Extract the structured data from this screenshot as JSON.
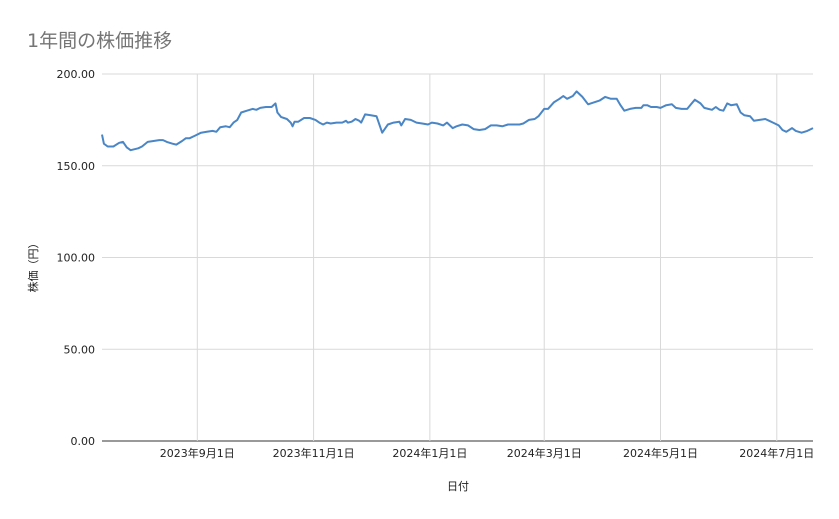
{
  "chart_data": {
    "type": "line",
    "title": "1年間の株価推移",
    "xlabel": "日付",
    "ylabel": "株価（円）",
    "ylim": [
      0,
      200
    ],
    "y_ticks": [
      "0.00",
      "50.00",
      "100.00",
      "150.00",
      "200.00"
    ],
    "x_ticks": [
      {
        "date": "2023-09-01",
        "label": "2023年9月1日"
      },
      {
        "date": "2023-11-01",
        "label": "2023年11月1日"
      },
      {
        "date": "2024-01-01",
        "label": "2024年1月1日"
      },
      {
        "date": "2024-03-01",
        "label": "2024年3月1日"
      },
      {
        "date": "2024-05-01",
        "label": "2024年5月1日"
      },
      {
        "date": "2024-07-01",
        "label": "2024年7月1日"
      }
    ],
    "xlim": [
      "2023-07-13",
      "2024-07-20"
    ],
    "grid": true,
    "legend": "none",
    "line_color": "#4a86c5",
    "series": [
      {
        "values": [
          [
            "2023-07-13",
            167
          ],
          [
            "2023-07-14",
            162
          ],
          [
            "2023-07-16",
            160.5
          ],
          [
            "2023-07-19",
            160.5
          ],
          [
            "2023-07-22",
            162.5
          ],
          [
            "2023-07-24",
            163
          ],
          [
            "2023-07-26",
            160
          ],
          [
            "2023-07-28",
            158.5
          ],
          [
            "2023-08-01",
            159.5
          ],
          [
            "2023-08-03",
            160.5
          ],
          [
            "2023-08-06",
            163
          ],
          [
            "2023-08-09",
            163.5
          ],
          [
            "2023-08-12",
            164
          ],
          [
            "2023-08-14",
            164
          ],
          [
            "2023-08-16",
            163
          ],
          [
            "2023-08-19",
            162
          ],
          [
            "2023-08-21",
            161.5
          ],
          [
            "2023-08-24",
            163.5
          ],
          [
            "2023-08-26",
            165
          ],
          [
            "2023-08-28",
            165
          ],
          [
            "2023-08-31",
            166.5
          ],
          [
            "2023-09-03",
            168
          ],
          [
            "2023-09-06",
            168.5
          ],
          [
            "2023-09-09",
            169
          ],
          [
            "2023-09-11",
            168.5
          ],
          [
            "2023-09-13",
            171
          ],
          [
            "2023-09-16",
            171.5
          ],
          [
            "2023-09-18",
            171
          ],
          [
            "2023-09-20",
            173.5
          ],
          [
            "2023-09-22",
            175
          ],
          [
            "2023-09-24",
            179
          ],
          [
            "2023-09-27",
            180
          ],
          [
            "2023-09-30",
            181
          ],
          [
            "2023-10-02",
            180.5
          ],
          [
            "2023-10-04",
            181.5
          ],
          [
            "2023-10-07",
            182
          ],
          [
            "2023-10-10",
            182
          ],
          [
            "2023-10-12",
            184
          ],
          [
            "2023-10-13",
            179
          ],
          [
            "2023-10-15",
            176.5
          ],
          [
            "2023-10-18",
            175.5
          ],
          [
            "2023-10-20",
            173.5
          ],
          [
            "2023-10-21",
            171.5
          ],
          [
            "2023-10-22",
            174
          ],
          [
            "2023-10-24",
            174
          ],
          [
            "2023-10-27",
            176
          ],
          [
            "2023-10-30",
            176
          ],
          [
            "2023-11-02",
            175
          ],
          [
            "2023-11-04",
            173.5
          ],
          [
            "2023-11-06",
            172.5
          ],
          [
            "2023-11-08",
            173.5
          ],
          [
            "2023-11-10",
            173
          ],
          [
            "2023-11-13",
            173.5
          ],
          [
            "2023-11-16",
            173.5
          ],
          [
            "2023-11-18",
            174.5
          ],
          [
            "2023-11-19",
            173.5
          ],
          [
            "2023-11-21",
            174
          ],
          [
            "2023-11-23",
            175.5
          ],
          [
            "2023-11-25",
            174.5
          ],
          [
            "2023-11-26",
            173.5
          ],
          [
            "2023-11-28",
            178
          ],
          [
            "2023-12-01",
            177.5
          ],
          [
            "2023-12-04",
            177
          ],
          [
            "2023-12-07",
            168
          ],
          [
            "2023-12-10",
            172.5
          ],
          [
            "2023-12-13",
            173.5
          ],
          [
            "2023-12-16",
            174
          ],
          [
            "2023-12-17",
            172
          ],
          [
            "2023-12-19",
            175.5
          ],
          [
            "2023-12-22",
            175
          ],
          [
            "2023-12-25",
            173.5
          ],
          [
            "2023-12-28",
            173
          ],
          [
            "2023-12-31",
            172.5
          ],
          [
            "2024-01-02",
            173.5
          ],
          [
            "2024-01-05",
            173
          ],
          [
            "2024-01-08",
            172
          ],
          [
            "2024-01-10",
            173.5
          ],
          [
            "2024-01-13",
            170.5
          ],
          [
            "2024-01-15",
            171.5
          ],
          [
            "2024-01-18",
            172.5
          ],
          [
            "2024-01-21",
            172
          ],
          [
            "2024-01-24",
            170
          ],
          [
            "2024-01-27",
            169.5
          ],
          [
            "2024-01-30",
            170
          ],
          [
            "2024-02-02",
            172
          ],
          [
            "2024-02-05",
            172
          ],
          [
            "2024-02-08",
            171.5
          ],
          [
            "2024-02-11",
            172.5
          ],
          [
            "2024-02-14",
            172.5
          ],
          [
            "2024-02-17",
            172.5
          ],
          [
            "2024-02-19",
            173
          ],
          [
            "2024-02-22",
            175
          ],
          [
            "2024-02-25",
            175.5
          ],
          [
            "2024-02-27",
            177
          ],
          [
            "2024-03-01",
            181
          ],
          [
            "2024-03-03",
            181
          ],
          [
            "2024-03-06",
            184.5
          ],
          [
            "2024-03-09",
            186.5
          ],
          [
            "2024-03-11",
            188
          ],
          [
            "2024-03-13",
            186.5
          ],
          [
            "2024-03-16",
            188
          ],
          [
            "2024-03-18",
            190.5
          ],
          [
            "2024-03-21",
            187.5
          ],
          [
            "2024-03-24",
            183.5
          ],
          [
            "2024-03-27",
            184.5
          ],
          [
            "2024-03-30",
            185.5
          ],
          [
            "2024-04-02",
            187.5
          ],
          [
            "2024-04-05",
            186.5
          ],
          [
            "2024-04-08",
            186.5
          ],
          [
            "2024-04-10",
            183
          ],
          [
            "2024-04-12",
            180
          ],
          [
            "2024-04-15",
            181
          ],
          [
            "2024-04-18",
            181.5
          ],
          [
            "2024-04-21",
            181.5
          ],
          [
            "2024-04-22",
            183
          ],
          [
            "2024-04-24",
            183
          ],
          [
            "2024-04-26",
            182
          ],
          [
            "2024-04-29",
            182
          ],
          [
            "2024-05-01",
            181.5
          ],
          [
            "2024-05-04",
            183
          ],
          [
            "2024-05-07",
            183.5
          ],
          [
            "2024-05-09",
            181.5
          ],
          [
            "2024-05-12",
            181
          ],
          [
            "2024-05-15",
            181
          ],
          [
            "2024-05-17",
            183.5
          ],
          [
            "2024-05-19",
            186
          ],
          [
            "2024-05-22",
            184
          ],
          [
            "2024-05-24",
            181.5
          ],
          [
            "2024-05-26",
            181
          ],
          [
            "2024-05-28",
            180.5
          ],
          [
            "2024-05-30",
            182
          ],
          [
            "2024-06-01",
            180.5
          ],
          [
            "2024-06-03",
            180
          ],
          [
            "2024-06-05",
            184
          ],
          [
            "2024-06-07",
            183
          ],
          [
            "2024-06-10",
            183.5
          ],
          [
            "2024-06-12",
            179
          ],
          [
            "2024-06-14",
            177.5
          ],
          [
            "2024-06-17",
            177
          ],
          [
            "2024-06-19",
            174.5
          ],
          [
            "2024-06-22",
            175
          ],
          [
            "2024-06-25",
            175.5
          ],
          [
            "2024-06-27",
            174.5
          ],
          [
            "2024-06-29",
            173.5
          ],
          [
            "2024-07-02",
            172
          ],
          [
            "2024-07-04",
            169.5
          ],
          [
            "2024-07-06",
            168.5
          ],
          [
            "2024-07-09",
            170.5
          ],
          [
            "2024-07-11",
            169
          ],
          [
            "2024-07-14",
            168
          ],
          [
            "2024-07-17",
            169
          ],
          [
            "2024-07-20",
            170.5
          ]
        ]
      }
    ]
  }
}
